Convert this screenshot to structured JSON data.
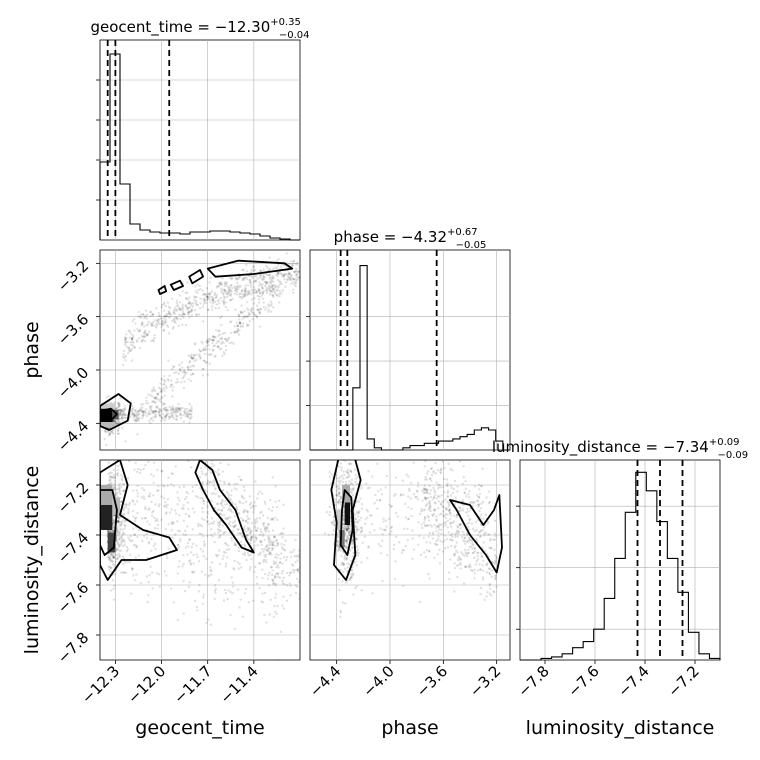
{
  "chart_data": {
    "type": "corner",
    "params": [
      {
        "name": "geocent_time",
        "title": "geocent_time = −12.30",
        "title_sup": "+0.35",
        "title_sub": "−0.04",
        "range": [
          -12.4,
          -11.1
        ],
        "ticks": [
          -12.3,
          -12.0,
          -11.7,
          -11.4
        ],
        "tick_labels": [
          "−12.3",
          "−12.0",
          "−11.7",
          "−11.4"
        ],
        "quantiles": [
          -12.35,
          -12.3,
          -11.95
        ],
        "hist": [
          0.39,
          0.93,
          0.28,
          0.08,
          0.05,
          0.04,
          0.035,
          0.035,
          0.03,
          0.04,
          0.04,
          0.045,
          0.045,
          0.04,
          0.035,
          0.03,
          0.02,
          0.01,
          0.005,
          0.0
        ],
        "hist_ylim": [
          0,
          1.0
        ],
        "hist_ticks": [
          0.2,
          0.4,
          0.6,
          0.8
        ]
      },
      {
        "name": "phase",
        "title": "phase = −4.32",
        "title_sup": "+0.67",
        "title_sub": "−0.05",
        "range": [
          -4.6,
          -3.1
        ],
        "ticks": [
          -4.4,
          -4.0,
          -3.6,
          -3.2
        ],
        "tick_labels": [
          "−4.4",
          "−4.0",
          "−3.6",
          "−3.2"
        ],
        "quantiles": [
          -4.37,
          -4.32,
          -3.65
        ],
        "hist": [
          0.0,
          0.0,
          0.0,
          0.0,
          0.0,
          0.0,
          0.28,
          0.83,
          0.05,
          0.01,
          0.0,
          0.0,
          0.0,
          0.01,
          0.02,
          0.02,
          0.03,
          0.03,
          0.04,
          0.04,
          0.05,
          0.06,
          0.07,
          0.09,
          0.1,
          0.09,
          0.04,
          0.0
        ],
        "hist_ylim": [
          0,
          0.9
        ],
        "hist_ticks": [
          0.2,
          0.4,
          0.6
        ]
      },
      {
        "name": "luminosity_distance",
        "title": "luminosity_distance = −7.34",
        "title_sup": "+0.09",
        "title_sub": "−0.09",
        "range": [
          -7.9,
          -7.1
        ],
        "ticks": [
          -7.8,
          -7.6,
          -7.4,
          -7.2
        ],
        "tick_labels": [
          "−7.8",
          "−7.6",
          "−7.4",
          "−7.2"
        ],
        "quantiles": [
          -7.43,
          -7.34,
          -7.25
        ],
        "hist": [
          0.0,
          0.0,
          0.005,
          0.01,
          0.02,
          0.04,
          0.06,
          0.1,
          0.2,
          0.33,
          0.48,
          0.61,
          0.55,
          0.45,
          0.33,
          0.22,
          0.09,
          0.02,
          0.005
        ],
        "hist_ylim": [
          0,
          0.65
        ],
        "hist_ticks": [
          0.1,
          0.3,
          0.5
        ]
      }
    ],
    "xlabels": [
      "geocent_time",
      "phase",
      "luminosity_distance"
    ],
    "ylabels": [
      "phase",
      "luminosity_distance"
    ],
    "grid": true,
    "colors": {
      "line": "#000000",
      "grid": "#b0b0b0",
      "points": "#000000"
    }
  }
}
